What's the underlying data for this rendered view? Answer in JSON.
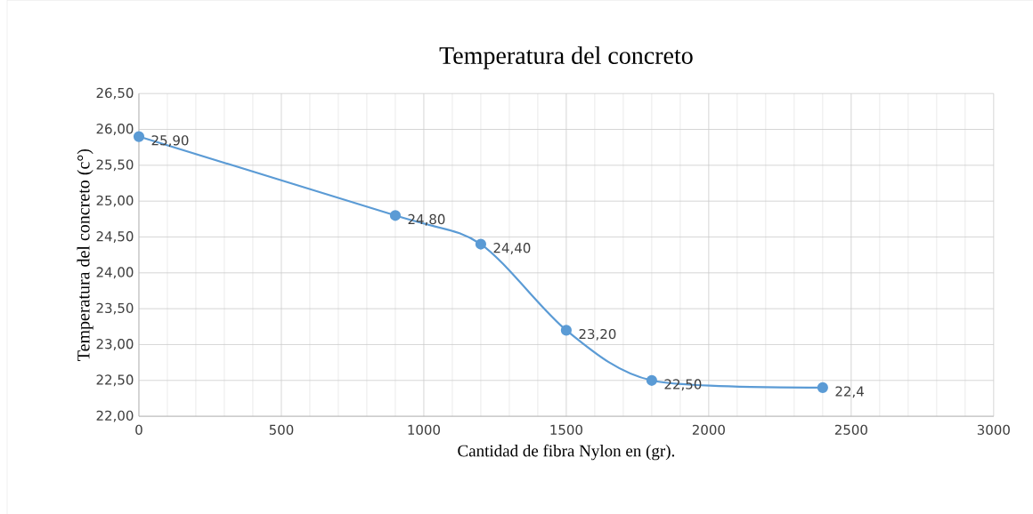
{
  "chart_data": {
    "type": "line",
    "title": "Temperatura del concreto",
    "xlabel": "Cantidad de fibra Nylon en (gr).",
    "ylabel": "Temperatura del concreto (c°)",
    "x": [
      0,
      900,
      1200,
      1500,
      1800,
      2400
    ],
    "series": [
      {
        "color": "#5b9bd5",
        "values": [
          25.9,
          24.8,
          24.4,
          23.2,
          22.5,
          22.4
        ],
        "value_labels": [
          "25,90",
          "24,80",
          "24,40",
          "23,20",
          "22,50",
          "22,4"
        ]
      }
    ],
    "xlim": [
      0,
      3000
    ],
    "xticks": [
      0,
      500,
      1000,
      1500,
      2000,
      2500,
      3000
    ],
    "ylim": [
      22,
      26.5
    ],
    "yticks": [
      {
        "value": 22,
        "label": "22,00"
      },
      {
        "value": 22.5,
        "label": "22,50"
      },
      {
        "value": 23,
        "label": "23,00"
      },
      {
        "value": 23.5,
        "label": "23,50"
      },
      {
        "value": 24,
        "label": "24,00"
      },
      {
        "value": 24.5,
        "label": "24,50"
      },
      {
        "value": 25,
        "label": "25,00"
      },
      {
        "value": 25.5,
        "label": "25,50"
      },
      {
        "value": 26,
        "label": "26,00"
      },
      {
        "value": 26.5,
        "label": "26,50"
      }
    ],
    "grid": true,
    "marker": "circle",
    "line_style": "solid"
  }
}
